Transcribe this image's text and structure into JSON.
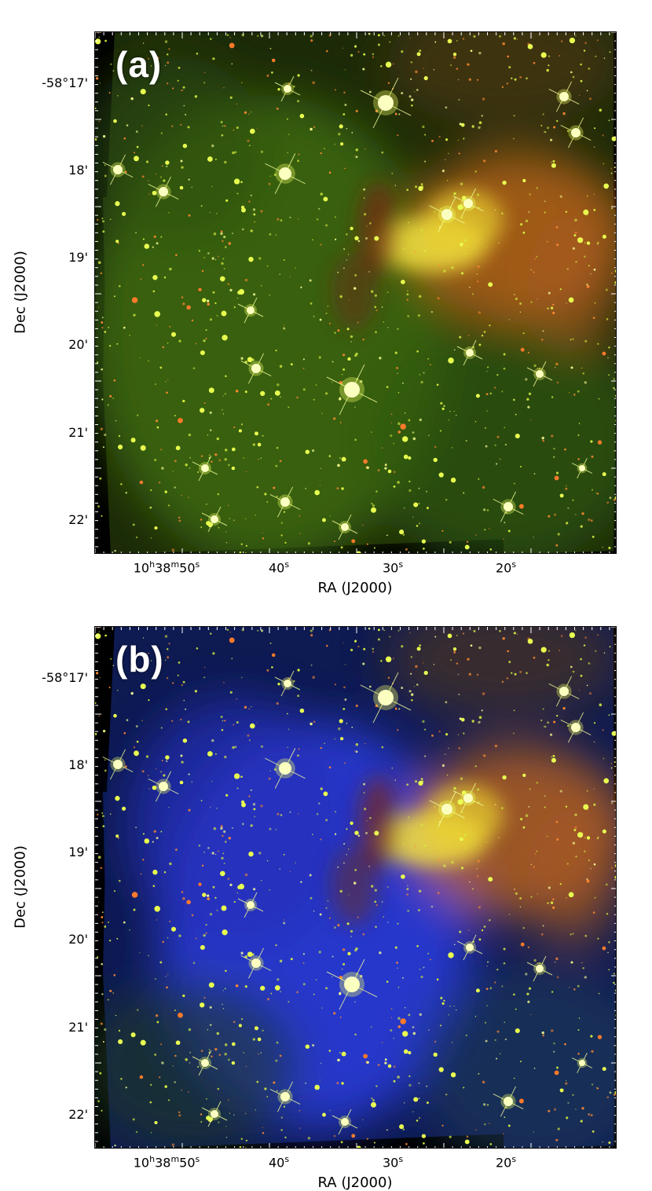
{
  "panels": [
    {
      "label": "(a)",
      "y_axis_label": "Dec (J2000)",
      "x_axis_label": "RA (J2000)",
      "dec_ticks": [
        "-58°17'",
        "18'",
        "19'",
        "20'",
        "21'",
        "22'"
      ],
      "ra_ticks": [
        {
          "h": "10",
          "m": "38",
          "s": "50"
        },
        {
          "s": "40"
        },
        {
          "s": "30"
        },
        {
          "s": "20"
        }
      ],
      "palette": "red-green"
    },
    {
      "label": "(b)",
      "y_axis_label": "Dec (J2000)",
      "x_axis_label": "RA (J2000)",
      "dec_ticks": [
        "-58°17'",
        "18'",
        "19'",
        "20'",
        "21'",
        "22'"
      ],
      "ra_ticks": [
        {
          "h": "10",
          "m": "38",
          "s": "50"
        },
        {
          "s": "40"
        },
        {
          "s": "30"
        },
        {
          "s": "20"
        }
      ],
      "palette": "red-green-blue"
    }
  ],
  "colors": {
    "background": "#000000",
    "nebula_green": "#3c6a12",
    "nebula_orange": "#c86a1a",
    "nebula_yellow": "#f0e040",
    "nebula_blue": "#2a3ad8",
    "star": "#e8ff50"
  }
}
